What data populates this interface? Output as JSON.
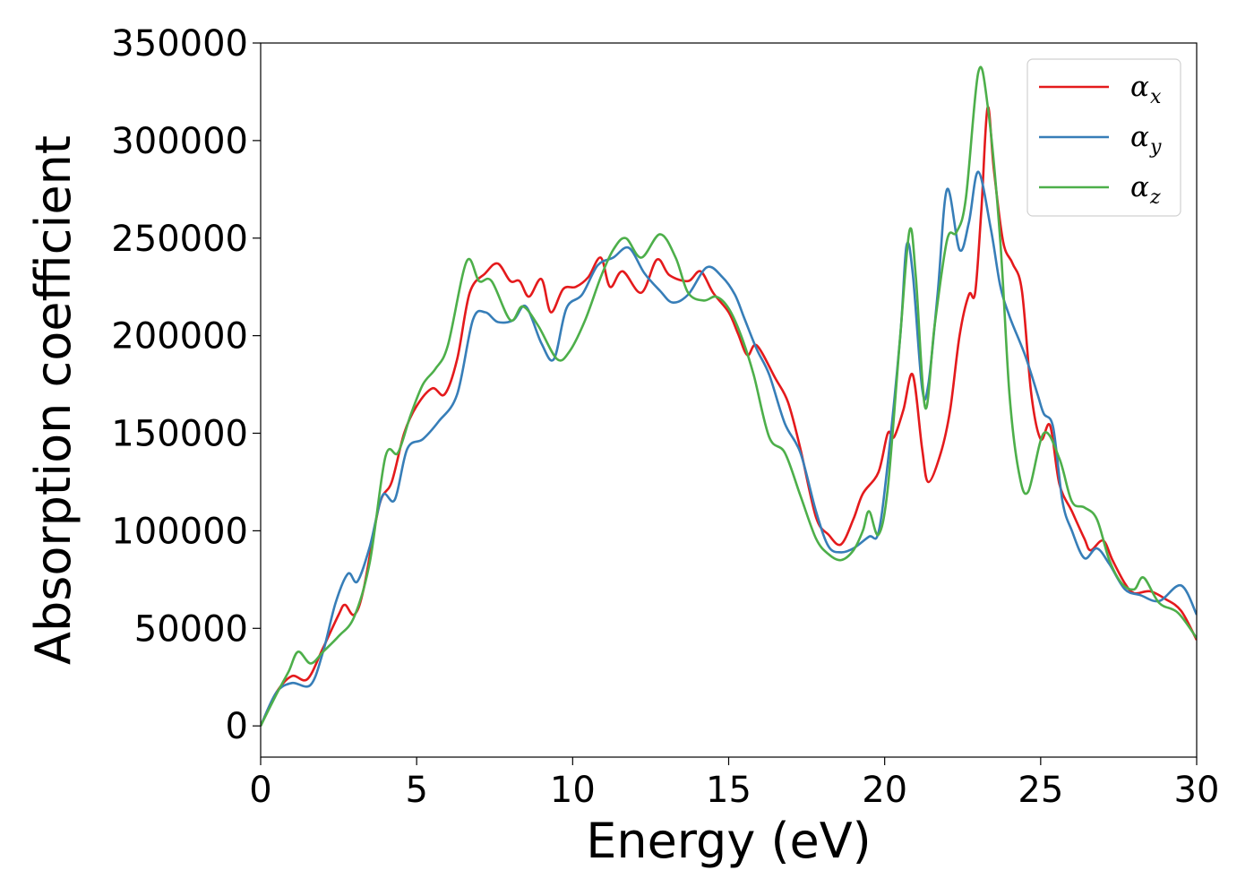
{
  "chart_data": {
    "type": "line",
    "xlabel": "Energy (eV)",
    "ylabel": "Absorption coefficient",
    "xlim": [
      0,
      30
    ],
    "ylim": [
      -16000,
      350000
    ],
    "xticks": [
      0,
      5,
      10,
      15,
      20,
      25,
      30
    ],
    "yticks": [
      0,
      50000,
      100000,
      150000,
      200000,
      250000,
      300000,
      350000
    ],
    "grid": false,
    "legend_position": "top-right",
    "series": [
      {
        "name": "α_x",
        "label_main": "α",
        "label_sub": "x",
        "color": "#e41a1c",
        "points": [
          [
            0,
            0
          ],
          [
            0.5,
            17000
          ],
          [
            1,
            25500
          ],
          [
            1.5,
            24000
          ],
          [
            2,
            40000
          ],
          [
            2.5,
            57000
          ],
          [
            2.7,
            62000
          ],
          [
            3,
            57000
          ],
          [
            3.3,
            70000
          ],
          [
            3.8,
            113000
          ],
          [
            4.2,
            125000
          ],
          [
            4.6,
            150000
          ],
          [
            5,
            164000
          ],
          [
            5.5,
            173000
          ],
          [
            5.9,
            170000
          ],
          [
            6.3,
            188000
          ],
          [
            6.7,
            222000
          ],
          [
            7.2,
            232000
          ],
          [
            7.6,
            237000
          ],
          [
            8,
            228000
          ],
          [
            8.3,
            228000
          ],
          [
            8.6,
            220000
          ],
          [
            9,
            229000
          ],
          [
            9.3,
            212000
          ],
          [
            9.7,
            224000
          ],
          [
            10.1,
            225000
          ],
          [
            10.5,
            230000
          ],
          [
            10.9,
            240000
          ],
          [
            11.2,
            225000
          ],
          [
            11.6,
            233000
          ],
          [
            12.2,
            222000
          ],
          [
            12.7,
            239000
          ],
          [
            13.1,
            231000
          ],
          [
            13.7,
            228000
          ],
          [
            14.1,
            233000
          ],
          [
            14.5,
            222000
          ],
          [
            15,
            212000
          ],
          [
            15.3,
            201000
          ],
          [
            15.6,
            190000
          ],
          [
            15.9,
            195000
          ],
          [
            16.5,
            178000
          ],
          [
            16.9,
            166000
          ],
          [
            17.3,
            142000
          ],
          [
            17.8,
            107000
          ],
          [
            18.2,
            98000
          ],
          [
            18.6,
            93000
          ],
          [
            19,
            106000
          ],
          [
            19.3,
            119000
          ],
          [
            19.8,
            130000
          ],
          [
            20.1,
            150000
          ],
          [
            20.3,
            148000
          ],
          [
            20.6,
            162000
          ],
          [
            20.9,
            180000
          ],
          [
            21.2,
            142000
          ],
          [
            21.4,
            125000
          ],
          [
            21.8,
            140000
          ],
          [
            22.1,
            162000
          ],
          [
            22.4,
            200000
          ],
          [
            22.7,
            221000
          ],
          [
            22.9,
            222000
          ],
          [
            23.1,
            265000
          ],
          [
            23.3,
            317000
          ],
          [
            23.5,
            285000
          ],
          [
            23.8,
            248000
          ],
          [
            24.1,
            237000
          ],
          [
            24.4,
            223000
          ],
          [
            24.7,
            170000
          ],
          [
            25,
            147000
          ],
          [
            25.3,
            154000
          ],
          [
            25.6,
            124000
          ],
          [
            26,
            110000
          ],
          [
            26.4,
            96000
          ],
          [
            26.6,
            90000
          ],
          [
            27,
            95000
          ],
          [
            27.3,
            85000
          ],
          [
            27.7,
            73000
          ],
          [
            28,
            68000
          ],
          [
            28.5,
            69000
          ],
          [
            29,
            65000
          ],
          [
            29.5,
            59000
          ],
          [
            30,
            44000
          ]
        ]
      },
      {
        "name": "α_y",
        "label_main": "α",
        "label_sub": "y",
        "color": "#377eb8",
        "points": [
          [
            0,
            0
          ],
          [
            0.5,
            17000
          ],
          [
            1,
            22000
          ],
          [
            1.6,
            21000
          ],
          [
            2,
            38000
          ],
          [
            2.4,
            63000
          ],
          [
            2.8,
            78000
          ],
          [
            3.1,
            74000
          ],
          [
            3.5,
            92000
          ],
          [
            3.9,
            118000
          ],
          [
            4.3,
            116000
          ],
          [
            4.7,
            142000
          ],
          [
            5.2,
            147000
          ],
          [
            5.7,
            156000
          ],
          [
            6.3,
            170000
          ],
          [
            6.8,
            208000
          ],
          [
            7.2,
            212000
          ],
          [
            7.6,
            207000
          ],
          [
            8.1,
            208000
          ],
          [
            8.5,
            215000
          ],
          [
            9,
            196000
          ],
          [
            9.4,
            188000
          ],
          [
            9.8,
            214000
          ],
          [
            10.3,
            221000
          ],
          [
            10.8,
            236000
          ],
          [
            11.3,
            240000
          ],
          [
            11.8,
            245000
          ],
          [
            12.3,
            232000
          ],
          [
            12.8,
            223000
          ],
          [
            13.2,
            217000
          ],
          [
            13.7,
            221000
          ],
          [
            14.3,
            235000
          ],
          [
            14.8,
            230000
          ],
          [
            15.2,
            221000
          ],
          [
            15.5,
            209000
          ],
          [
            15.9,
            193000
          ],
          [
            16.3,
            180000
          ],
          [
            16.8,
            155000
          ],
          [
            17.3,
            140000
          ],
          [
            17.8,
            110000
          ],
          [
            18.2,
            92000
          ],
          [
            18.6,
            89000
          ],
          [
            19,
            91000
          ],
          [
            19.5,
            97000
          ],
          [
            19.8,
            99000
          ],
          [
            20.1,
            135000
          ],
          [
            20.5,
            200000
          ],
          [
            20.7,
            246000
          ],
          [
            20.9,
            232000
          ],
          [
            21.2,
            173000
          ],
          [
            21.4,
            175000
          ],
          [
            21.7,
            222000
          ],
          [
            22,
            275000
          ],
          [
            22.4,
            244000
          ],
          [
            22.7,
            258000
          ],
          [
            23,
            284000
          ],
          [
            23.4,
            255000
          ],
          [
            23.7,
            226000
          ],
          [
            24,
            210000
          ],
          [
            24.5,
            190000
          ],
          [
            24.9,
            170000
          ],
          [
            25.1,
            160000
          ],
          [
            25.4,
            153000
          ],
          [
            25.7,
            115000
          ],
          [
            26,
            100000
          ],
          [
            26.4,
            86000
          ],
          [
            26.8,
            91000
          ],
          [
            27.2,
            83000
          ],
          [
            27.7,
            70000
          ],
          [
            28.2,
            67000
          ],
          [
            28.8,
            64000
          ],
          [
            29.5,
            72000
          ],
          [
            30,
            57000
          ]
        ]
      },
      {
        "name": "α_z",
        "label_main": "α",
        "label_sub": "z",
        "color": "#4daf4a",
        "points": [
          [
            0,
            0
          ],
          [
            0.5,
            16000
          ],
          [
            0.9,
            28000
          ],
          [
            1.2,
            38000
          ],
          [
            1.6,
            32000
          ],
          [
            2,
            38000
          ],
          [
            2.5,
            46000
          ],
          [
            3,
            56000
          ],
          [
            3.5,
            84000
          ],
          [
            4,
            138000
          ],
          [
            4.4,
            140000
          ],
          [
            4.8,
            159000
          ],
          [
            5.2,
            175000
          ],
          [
            5.6,
            183000
          ],
          [
            6,
            195000
          ],
          [
            6.6,
            238000
          ],
          [
            7,
            228000
          ],
          [
            7.4,
            228000
          ],
          [
            8,
            208000
          ],
          [
            8.4,
            215000
          ],
          [
            8.9,
            205000
          ],
          [
            9.5,
            188000
          ],
          [
            9.9,
            192000
          ],
          [
            10.4,
            208000
          ],
          [
            10.9,
            230000
          ],
          [
            11.3,
            244000
          ],
          [
            11.7,
            250000
          ],
          [
            12.2,
            240000
          ],
          [
            12.8,
            252000
          ],
          [
            13.3,
            240000
          ],
          [
            13.7,
            222000
          ],
          [
            14.2,
            218000
          ],
          [
            14.6,
            220000
          ],
          [
            15,
            214000
          ],
          [
            15.4,
            200000
          ],
          [
            15.8,
            180000
          ],
          [
            16.3,
            148000
          ],
          [
            16.8,
            140000
          ],
          [
            17.3,
            118000
          ],
          [
            17.8,
            96000
          ],
          [
            18.2,
            88000
          ],
          [
            18.6,
            85000
          ],
          [
            19,
            90000
          ],
          [
            19.3,
            100000
          ],
          [
            19.5,
            110000
          ],
          [
            19.8,
            98000
          ],
          [
            20.1,
            122000
          ],
          [
            20.5,
            200000
          ],
          [
            20.8,
            254000
          ],
          [
            21,
            230000
          ],
          [
            21.3,
            163000
          ],
          [
            21.6,
            205000
          ],
          [
            22,
            249000
          ],
          [
            22.3,
            253000
          ],
          [
            22.6,
            270000
          ],
          [
            23,
            335000
          ],
          [
            23.3,
            318000
          ],
          [
            23.7,
            250000
          ],
          [
            24,
            170000
          ],
          [
            24.3,
            130000
          ],
          [
            24.6,
            120000
          ],
          [
            25.1,
            150000
          ],
          [
            25.6,
            137000
          ],
          [
            26,
            115000
          ],
          [
            26.4,
            112000
          ],
          [
            26.8,
            106000
          ],
          [
            27.2,
            85000
          ],
          [
            27.6,
            73000
          ],
          [
            28,
            70000
          ],
          [
            28.3,
            76000
          ],
          [
            28.8,
            63000
          ],
          [
            29.4,
            58000
          ],
          [
            30,
            45000
          ]
        ]
      }
    ]
  }
}
